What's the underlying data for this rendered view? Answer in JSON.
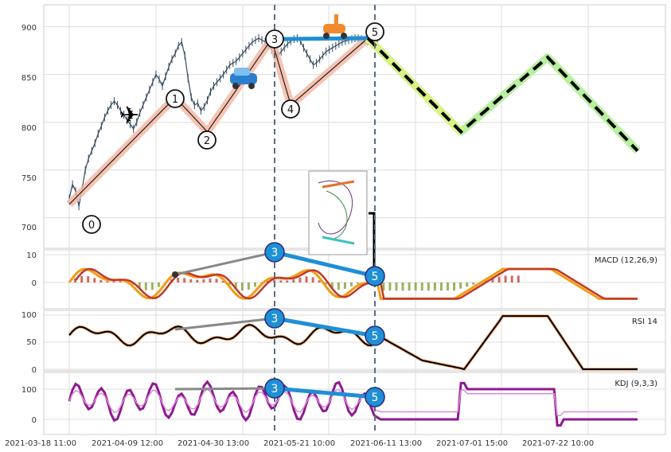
{
  "chart_data": [
    {
      "type": "line",
      "panel": "price",
      "x_ticks": [
        "2021-03-18 11:00",
        "2021-04-09 12:00",
        "2021-04-30 13:00",
        "2021-05-21 10:00",
        "2021-06-11 13:00",
        "2021-07-01 15:00",
        "2021-07-22 10:00"
      ],
      "y_ticks": [
        700,
        750,
        800,
        850,
        900
      ],
      "ylim": [
        668,
        923
      ],
      "series": [
        {
          "values_x": [
            0,
            1,
            2,
            3,
            4,
            5,
            6,
            7,
            8,
            9,
            10,
            11,
            12,
            13,
            14,
            15,
            16,
            17,
            18,
            19,
            20,
            21,
            22,
            23,
            24,
            25,
            26,
            27,
            28,
            29,
            30,
            31,
            32,
            33,
            34,
            35,
            36,
            37,
            38,
            39,
            40,
            41,
            42,
            43,
            44,
            45,
            46,
            47,
            48,
            49,
            50,
            51,
            52,
            53,
            54,
            55,
            56,
            57,
            58,
            59,
            60,
            61,
            62,
            63,
            64,
            65,
            66,
            67,
            68,
            69,
            70,
            71,
            72,
            73,
            74,
            75,
            76,
            77,
            78,
            79,
            80,
            81,
            82,
            83,
            84,
            85,
            86,
            87,
            88,
            89,
            90,
            91,
            92,
            93,
            94,
            95,
            96
          ],
          "values": [
            720,
            735,
            728,
            712,
            730,
            750,
            762,
            770,
            778,
            788,
            796,
            805,
            812,
            818,
            822,
            818,
            812,
            808,
            802,
            798,
            793,
            800,
            810,
            818,
            826,
            834,
            842,
            850,
            845,
            838,
            848,
            858,
            866,
            872,
            880,
            884,
            870,
            846,
            826,
            818,
            820,
            812,
            816,
            823,
            832,
            838,
            842,
            846,
            850,
            855,
            860,
            862,
            864,
            868,
            872,
            876,
            880,
            884,
            886,
            888,
            886,
            884,
            880,
            876,
            872,
            870,
            874,
            878,
            882,
            885,
            887,
            888,
            885,
            878,
            872,
            866,
            860,
            862,
            866,
            870,
            874,
            876,
            878,
            880,
            882,
            884,
            885,
            886,
            887,
            888,
            888,
            887,
            886,
            885,
            884,
            885,
            886
          ]
        }
      ],
      "waves": {
        "labels": [
          "0",
          "1",
          "2",
          "3",
          "4",
          "5"
        ],
        "points": [
          [
            0,
            714
          ],
          [
            33,
            826
          ],
          [
            43,
            790
          ],
          [
            63,
            887
          ],
          [
            69,
            818
          ],
          [
            93,
            888
          ]
        ]
      },
      "projection": {
        "points": [
          [
            93,
            888
          ],
          [
            122,
            790
          ],
          [
            149,
            868
          ],
          [
            177,
            770
          ]
        ]
      },
      "icons": [
        "airplane-icon",
        "car-icon",
        "scooter-icon"
      ]
    },
    {
      "type": "line",
      "panel": "MACD",
      "title": "MACD (12,26,9)",
      "y_ticks": [
        0,
        10
      ],
      "ylim": [
        -8,
        14
      ],
      "divergence_labels": [
        "3",
        "5"
      ]
    },
    {
      "type": "line",
      "panel": "RSI",
      "title": "RSI 14",
      "y_ticks": [
        0,
        50,
        100
      ],
      "ylim": [
        -5,
        108
      ],
      "divergence_labels": [
        "3",
        "5"
      ]
    },
    {
      "type": "line",
      "panel": "KDJ",
      "title": "KDJ (9,3,3)",
      "y_ticks": [
        0,
        100
      ],
      "ylim": [
        -40,
        150
      ],
      "divergence_labels": [
        "3",
        "5"
      ]
    }
  ]
}
